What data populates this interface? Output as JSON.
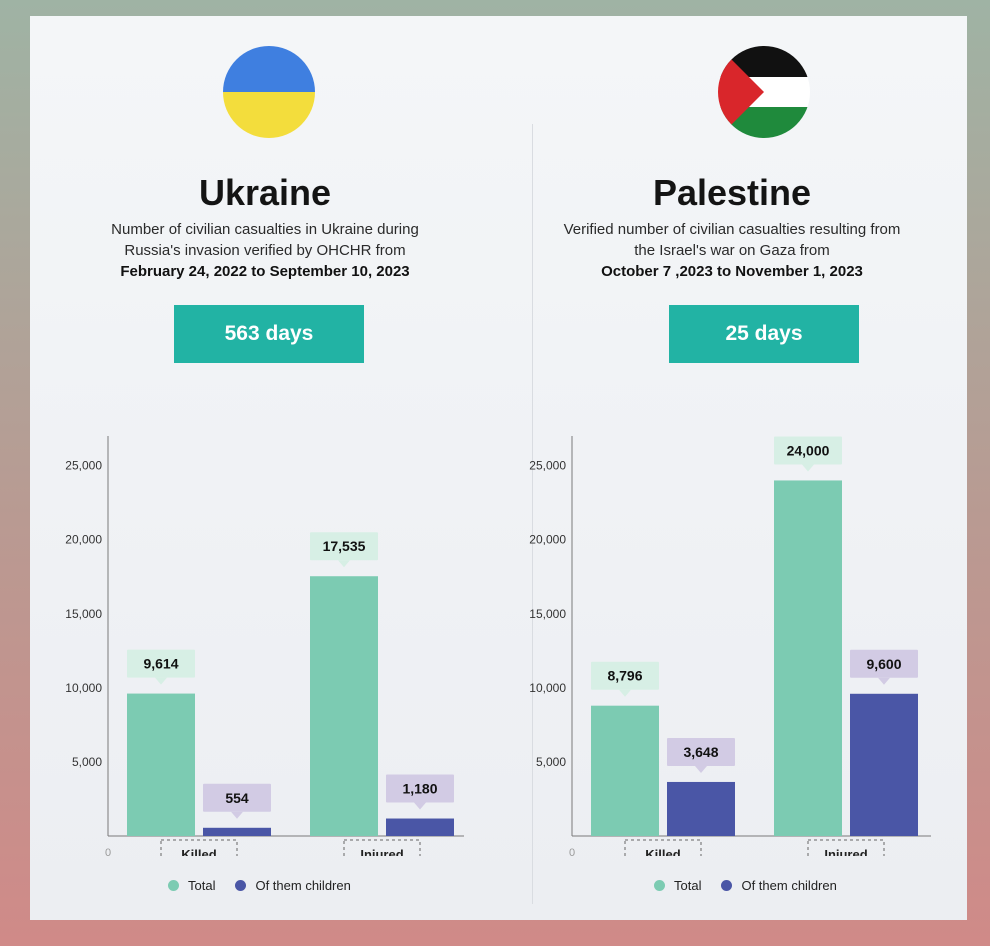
{
  "colors": {
    "total": "#7ccbb2",
    "children": "#4a56a6",
    "total_label_bg": "#d7efe5",
    "children_label_bg": "#d2cbe4",
    "accent": "#22b3a4"
  },
  "legend": {
    "total": "Total",
    "children": "Of them children"
  },
  "panels": [
    {
      "country": "Ukraine",
      "flag": "ukraine-flag",
      "desc": [
        "Number of civilian casualties in Ukraine during",
        "Russia's invasion verified by OHCHR from",
        "February 24, 2022 to September 10, 2023"
      ],
      "days": "563 days"
    },
    {
      "country": "Palestine",
      "flag": "palestine-flag",
      "desc": [
        "Verified number of civilian casualties resulting from",
        "the Israel's war on Gaza from",
        "October 7 ,2023 to November 1, 2023"
      ],
      "days": "25 days"
    }
  ],
  "chart_data": [
    {
      "type": "bar",
      "categories": [
        "Killed",
        "Injured"
      ],
      "series": [
        {
          "name": "Total",
          "values": [
            9614,
            17535
          ]
        },
        {
          "name": "Of them children",
          "values": [
            554,
            1180
          ]
        }
      ],
      "data_labels": [
        [
          "9,614",
          "17,535"
        ],
        [
          "554",
          "1,180"
        ]
      ],
      "yticks": [
        0,
        5000,
        10000,
        15000,
        20000,
        25000
      ],
      "ytick_labels": [
        "0",
        "5,000",
        "10,000",
        "15,000",
        "20,000",
        "25,000"
      ],
      "ylim": [
        0,
        27000
      ],
      "legend_position": "bottom"
    },
    {
      "type": "bar",
      "categories": [
        "Killed",
        "Injured"
      ],
      "series": [
        {
          "name": "Total",
          "values": [
            8796,
            24000
          ]
        },
        {
          "name": "Of them children",
          "values": [
            3648,
            9600
          ]
        }
      ],
      "data_labels": [
        [
          "8,796",
          "24,000"
        ],
        [
          "3,648",
          "9,600"
        ]
      ],
      "yticks": [
        0,
        5000,
        10000,
        15000,
        20000,
        25000
      ],
      "ytick_labels": [
        "0",
        "5,000",
        "10,000",
        "15,000",
        "20,000",
        "25,000"
      ],
      "ylim": [
        0,
        27000
      ],
      "legend_position": "bottom"
    }
  ]
}
